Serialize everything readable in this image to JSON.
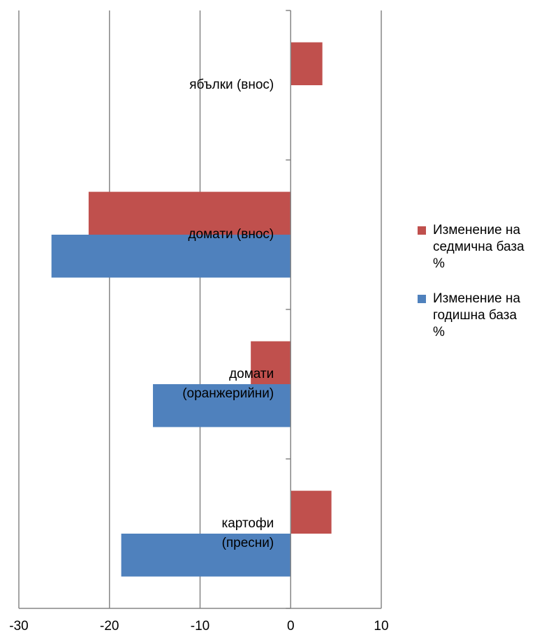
{
  "chart_data": {
    "type": "bar",
    "orientation": "horizontal",
    "categories": [
      "ябълки (внос)",
      "домати (внос)",
      "домати (оранжерийни)",
      "картофи (пресни)"
    ],
    "category_label_lines": [
      [
        "ябълки (внос)"
      ],
      [
        "домати (внос)"
      ],
      [
        "домати",
        "(оранжерийни)"
      ],
      [
        "картофи",
        "(пресни)"
      ]
    ],
    "series": [
      {
        "name": "Изменение на седмична база %",
        "values": [
          3.5,
          -22.3,
          -4.4,
          4.5
        ],
        "color": "#c0504d"
      },
      {
        "name": "Изменение на годишна база %",
        "values": [
          null,
          -26.4,
          -15.2,
          -18.7
        ],
        "color": "#4f81bd"
      }
    ],
    "xlim": [
      -30,
      10
    ],
    "x_ticks": [
      -30,
      -20,
      -10,
      0,
      10
    ],
    "x_tick_labels": [
      "-30",
      "-20",
      "-10",
      "0",
      "10"
    ],
    "grid": "vertical",
    "legend_position": "right"
  },
  "legend": {
    "items": [
      {
        "lines": [
          "Изменение на",
          "седмична база",
          "%"
        ],
        "color": "#c0504d"
      },
      {
        "lines": [
          "Изменение на",
          "годишна база",
          "%"
        ],
        "color": "#4f81bd"
      }
    ]
  }
}
